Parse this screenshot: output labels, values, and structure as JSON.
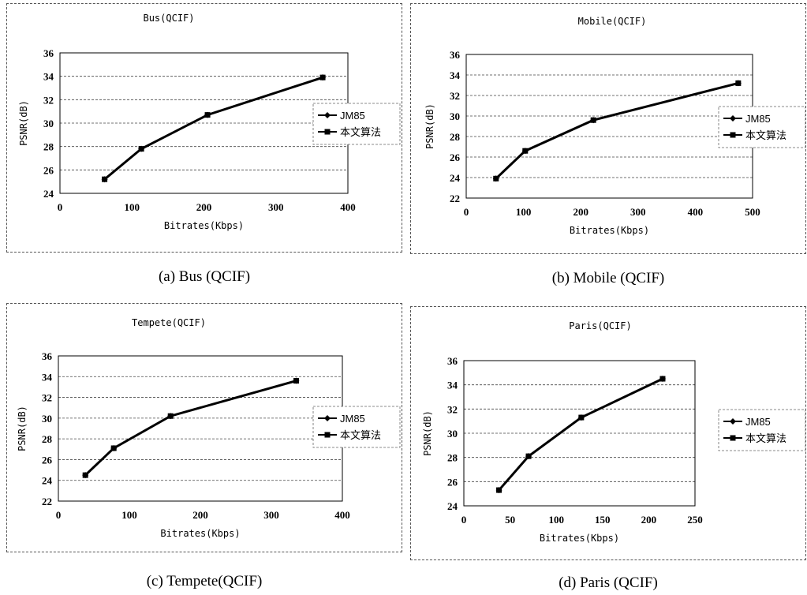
{
  "captions": [
    "(a) Bus (QCIF)",
    "(b) Mobile (QCIF)",
    "(c) Tempete(QCIF)",
    "(d) Paris (QCIF)"
  ],
  "legend": [
    "JM85",
    "本文算法"
  ],
  "chart_data": [
    {
      "type": "line",
      "title": "Bus(QCIF)",
      "xlabel": "Bitrates(Kbps)",
      "ylabel": "PSNR(dB)",
      "xlim": [
        0,
        400
      ],
      "ylim": [
        24,
        36
      ],
      "xticks": [
        0,
        100,
        200,
        300,
        400
      ],
      "yticks": [
        24,
        26,
        28,
        30,
        32,
        34,
        36
      ],
      "grid": true,
      "legend_position": "right",
      "series": [
        {
          "name": "JM85",
          "marker": "diamond",
          "x": [
            62,
            113,
            205,
            365
          ],
          "y": [
            25.2,
            27.8,
            30.7,
            33.9
          ]
        },
        {
          "name": "本文算法",
          "marker": "square",
          "x": [
            62,
            113,
            205,
            365
          ],
          "y": [
            25.2,
            27.8,
            30.7,
            33.9
          ]
        }
      ]
    },
    {
      "type": "line",
      "title": "Mobile(QCIF)",
      "xlabel": "Bitrates(Kbps)",
      "ylabel": "PSNR(dB)",
      "xlim": [
        0,
        500
      ],
      "ylim": [
        22,
        36
      ],
      "xticks": [
        0,
        100,
        200,
        300,
        400,
        500
      ],
      "yticks": [
        22,
        24,
        26,
        28,
        30,
        32,
        34,
        36
      ],
      "grid": true,
      "legend_position": "right",
      "series": [
        {
          "name": "JM85",
          "marker": "diamond",
          "x": [
            52,
            103,
            222,
            475
          ],
          "y": [
            23.9,
            26.6,
            29.6,
            33.2
          ]
        },
        {
          "name": "本文算法",
          "marker": "square",
          "x": [
            52,
            103,
            222,
            475
          ],
          "y": [
            23.9,
            26.6,
            29.6,
            33.2
          ]
        }
      ]
    },
    {
      "type": "line",
      "title": "Tempete(QCIF)",
      "xlabel": "Bitrates(Kbps)",
      "ylabel": "PSNR(dB)",
      "xlim": [
        0,
        400
      ],
      "ylim": [
        22,
        36
      ],
      "xticks": [
        0,
        100,
        200,
        300,
        400
      ],
      "yticks": [
        22,
        24,
        26,
        28,
        30,
        32,
        34,
        36
      ],
      "grid": true,
      "legend_position": "right",
      "series": [
        {
          "name": "JM85",
          "marker": "diamond",
          "x": [
            38,
            78,
            158,
            335
          ],
          "y": [
            24.5,
            27.1,
            30.2,
            33.6
          ]
        },
        {
          "name": "本文算法",
          "marker": "square",
          "x": [
            38,
            78,
            158,
            335
          ],
          "y": [
            24.5,
            27.1,
            30.2,
            33.6
          ]
        }
      ]
    },
    {
      "type": "line",
      "title": "Paris(QCIF)",
      "xlabel": "Bitrates(Kbps)",
      "ylabel": "PSNR(dB)",
      "xlim": [
        0,
        250
      ],
      "ylim": [
        24,
        36
      ],
      "xticks": [
        0,
        50,
        100,
        150,
        200,
        250
      ],
      "yticks": [
        24,
        26,
        28,
        30,
        32,
        34,
        36
      ],
      "grid": true,
      "legend_position": "right",
      "series": [
        {
          "name": "JM85",
          "marker": "diamond",
          "x": [
            38,
            70,
            127,
            215
          ],
          "y": [
            25.3,
            28.1,
            31.3,
            34.5
          ]
        },
        {
          "name": "本文算法",
          "marker": "square",
          "x": [
            38,
            70,
            127,
            215
          ],
          "y": [
            25.3,
            28.1,
            31.3,
            34.5
          ]
        }
      ]
    }
  ]
}
